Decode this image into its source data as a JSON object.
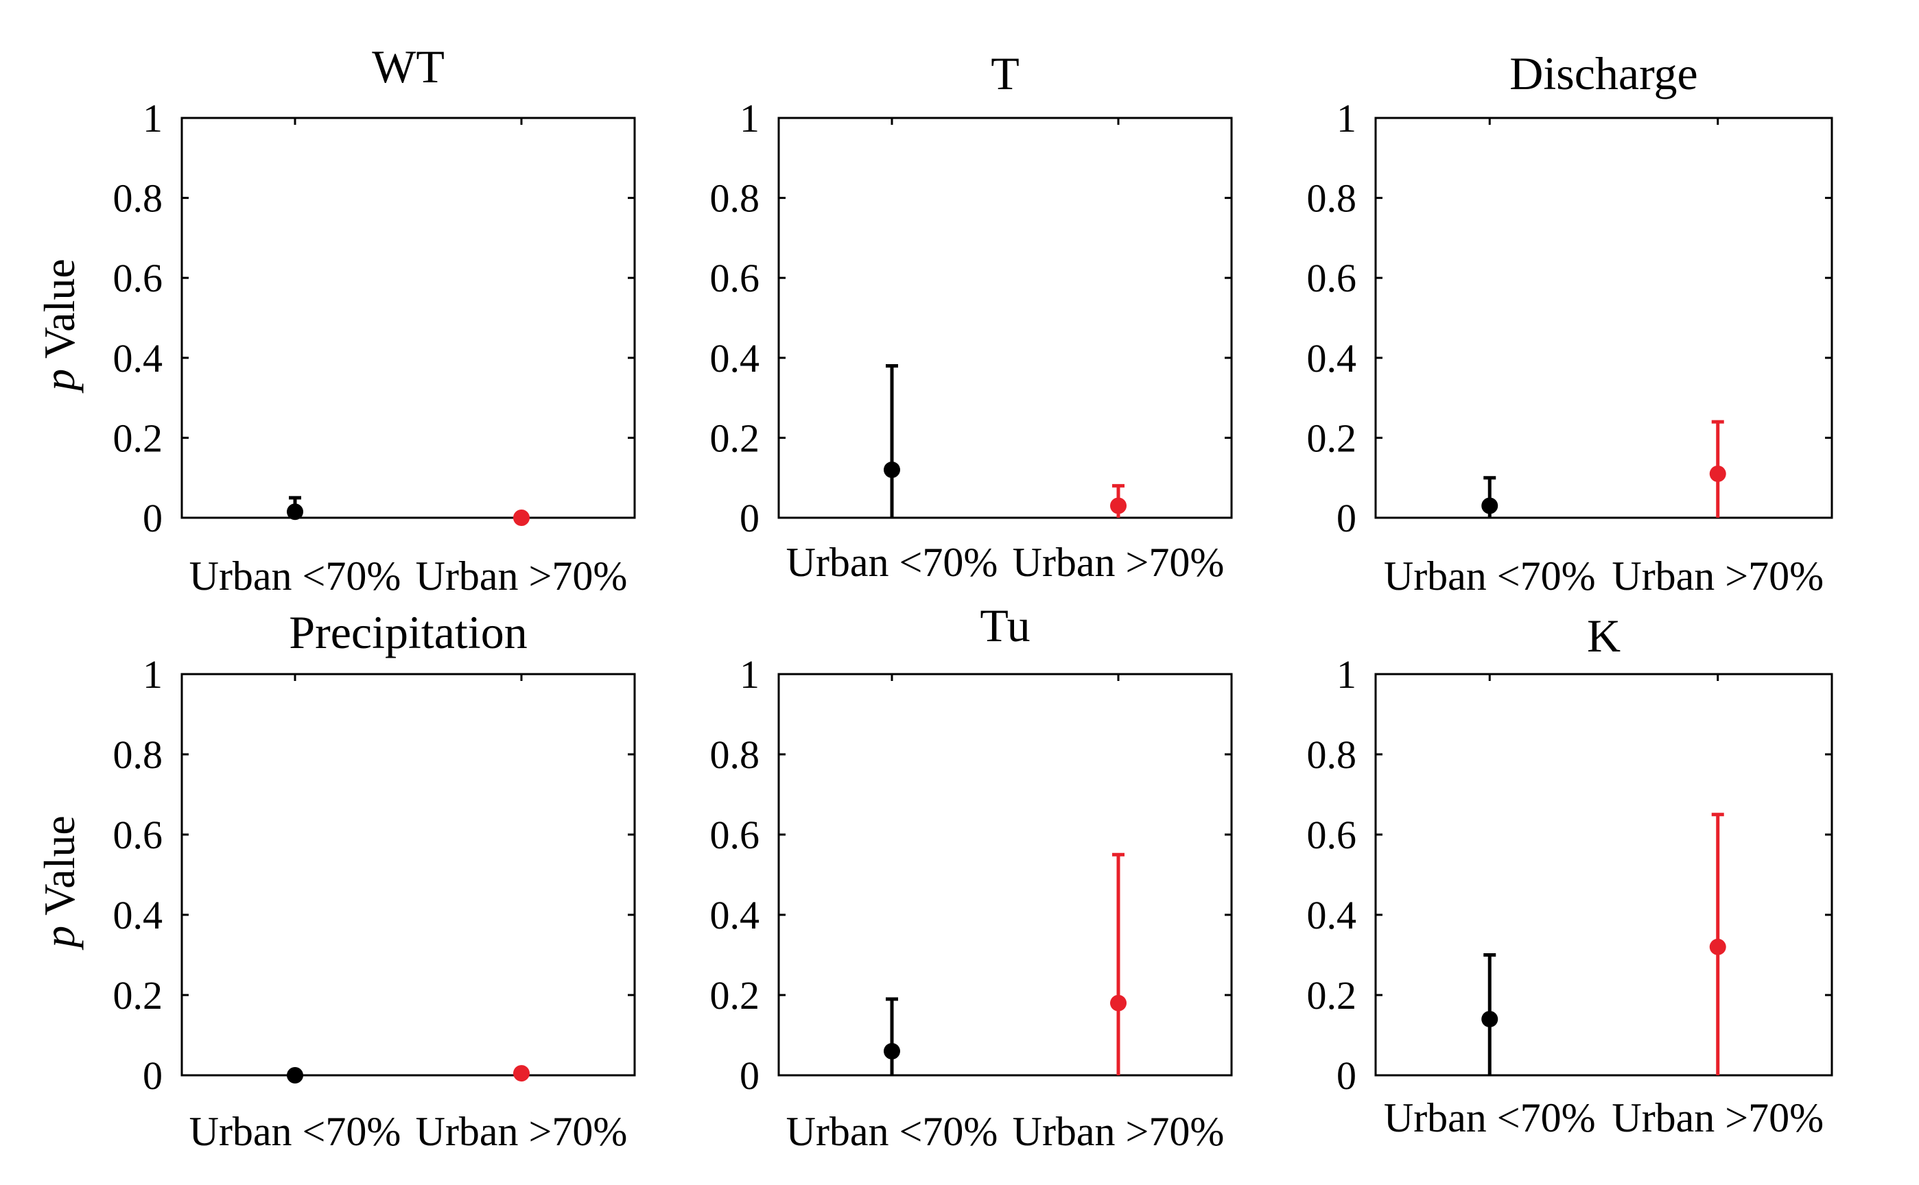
{
  "chart_data": [
    {
      "type": "errorbar",
      "title": "WT",
      "ylabel_italic": "p",
      "ylabel": "Value",
      "ylim": [
        0,
        1
      ],
      "yticks": [
        "0",
        "0.2",
        "0.4",
        "0.6",
        "0.8",
        "1"
      ],
      "categories": [
        "Urban <70%",
        "Urban >70%"
      ],
      "points": [
        {
          "category": "Urban <70%",
          "value": 0.015,
          "lower": 0.0,
          "upper": 0.05,
          "color": "#000000"
        },
        {
          "category": "Urban >70%",
          "value": 0.0,
          "lower": 0.0,
          "upper": 0.0,
          "color": "#e8202a"
        }
      ]
    },
    {
      "type": "errorbar",
      "title": "T",
      "ylim": [
        0,
        1
      ],
      "yticks": [
        "0",
        "0.2",
        "0.4",
        "0.6",
        "0.8",
        "1"
      ],
      "categories": [
        "Urban <70%",
        "Urban >70%"
      ],
      "points": [
        {
          "category": "Urban <70%",
          "value": 0.12,
          "lower": 0.0,
          "upper": 0.38,
          "color": "#000000"
        },
        {
          "category": "Urban >70%",
          "value": 0.03,
          "lower": 0.0,
          "upper": 0.08,
          "color": "#e8202a"
        }
      ]
    },
    {
      "type": "errorbar",
      "title": "Discharge",
      "ylim": [
        0,
        1
      ],
      "yticks": [
        "0",
        "0.2",
        "0.4",
        "0.6",
        "0.8",
        "1"
      ],
      "categories": [
        "Urban <70%",
        "Urban >70%"
      ],
      "points": [
        {
          "category": "Urban <70%",
          "value": 0.03,
          "lower": 0.0,
          "upper": 0.1,
          "color": "#000000"
        },
        {
          "category": "Urban >70%",
          "value": 0.11,
          "lower": 0.0,
          "upper": 0.24,
          "color": "#e8202a"
        }
      ]
    },
    {
      "type": "errorbar",
      "title": "Precipitation",
      "ylabel_italic": "p",
      "ylabel": "Value",
      "ylim": [
        0,
        1
      ],
      "yticks": [
        "0",
        "0.2",
        "0.4",
        "0.6",
        "0.8",
        "1"
      ],
      "categories": [
        "Urban <70%",
        "Urban >70%"
      ],
      "points": [
        {
          "category": "Urban <70%",
          "value": 0.0,
          "lower": 0.0,
          "upper": 0.0,
          "color": "#000000"
        },
        {
          "category": "Urban >70%",
          "value": 0.005,
          "lower": 0.0,
          "upper": 0.01,
          "color": "#e8202a"
        }
      ]
    },
    {
      "type": "errorbar",
      "title": "Tu",
      "ylim": [
        0,
        1
      ],
      "yticks": [
        "0",
        "0.2",
        "0.4",
        "0.6",
        "0.8",
        "1"
      ],
      "categories": [
        "Urban <70%",
        "Urban >70%"
      ],
      "points": [
        {
          "category": "Urban <70%",
          "value": 0.06,
          "lower": 0.0,
          "upper": 0.19,
          "color": "#000000"
        },
        {
          "category": "Urban >70%",
          "value": 0.18,
          "lower": 0.0,
          "upper": 0.55,
          "color": "#e8202a"
        }
      ]
    },
    {
      "type": "errorbar",
      "title": "K",
      "ylim": [
        0,
        1
      ],
      "yticks": [
        "0",
        "0.2",
        "0.4",
        "0.6",
        "0.8",
        "1"
      ],
      "categories": [
        "Urban <70%",
        "Urban >70%"
      ],
      "points": [
        {
          "category": "Urban <70%",
          "value": 0.14,
          "lower": 0.0,
          "upper": 0.3,
          "color": "#000000"
        },
        {
          "category": "Urban >70%",
          "value": 0.32,
          "lower": 0.0,
          "upper": 0.65,
          "color": "#e8202a"
        }
      ]
    }
  ]
}
